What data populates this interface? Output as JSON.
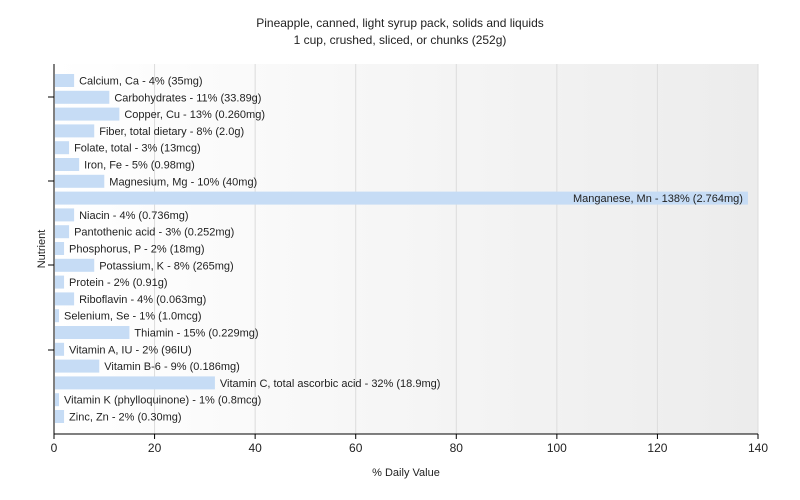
{
  "chart_data": {
    "type": "bar",
    "orientation": "horizontal",
    "title": "Pineapple, canned, light syrup pack, solids and liquids",
    "subtitle": "1 cup, crushed, sliced, or chunks (252g)",
    "xlabel": "% Daily Value",
    "ylabel": "Nutrient",
    "xlim": [
      0,
      140
    ],
    "xticks": [
      0,
      20,
      40,
      60,
      80,
      100,
      120,
      140
    ],
    "grid": true,
    "bar_color": "#c6dcf5",
    "categories": [
      "Calcium, Ca",
      "Carbohydrates",
      "Copper, Cu",
      "Fiber, total dietary",
      "Folate, total",
      "Iron, Fe",
      "Magnesium, Mg",
      "Manganese, Mn",
      "Niacin",
      "Pantothenic acid",
      "Phosphorus, P",
      "Potassium, K",
      "Protein",
      "Riboflavin",
      "Selenium, Se",
      "Thiamin",
      "Vitamin A, IU",
      "Vitamin B-6",
      "Vitamin C, total ascorbic acid",
      "Vitamin K (phylloquinone)",
      "Zinc, Zn"
    ],
    "values": [
      4,
      11,
      13,
      8,
      3,
      5,
      10,
      138,
      4,
      3,
      2,
      8,
      2,
      4,
      1,
      15,
      2,
      9,
      32,
      1,
      2
    ],
    "labels": [
      "Calcium, Ca - 4% (35mg)",
      "Carbohydrates - 11% (33.89g)",
      "Copper, Cu - 13% (0.260mg)",
      "Fiber, total dietary - 8% (2.0g)",
      "Folate, total - 3% (13mcg)",
      "Iron, Fe - 5% (0.98mg)",
      "Magnesium, Mg - 10% (40mg)",
      "Manganese, Mn - 138% (2.764mg)",
      "Niacin - 4% (0.736mg)",
      "Pantothenic acid - 3% (0.252mg)",
      "Phosphorus, P - 2% (18mg)",
      "Potassium, K - 8% (265mg)",
      "Protein - 2% (0.91g)",
      "Riboflavin - 4% (0.063mg)",
      "Selenium, Se - 1% (1.0mcg)",
      "Thiamin - 15% (0.229mg)",
      "Vitamin A, IU - 2% (96IU)",
      "Vitamin B-6 - 9% (0.186mg)",
      "Vitamin C, total ascorbic acid - 32% (18.9mg)",
      "Vitamin K (phylloquinone) - 1% (0.8mcg)",
      "Zinc, Zn - 2% (0.30mg)"
    ]
  }
}
